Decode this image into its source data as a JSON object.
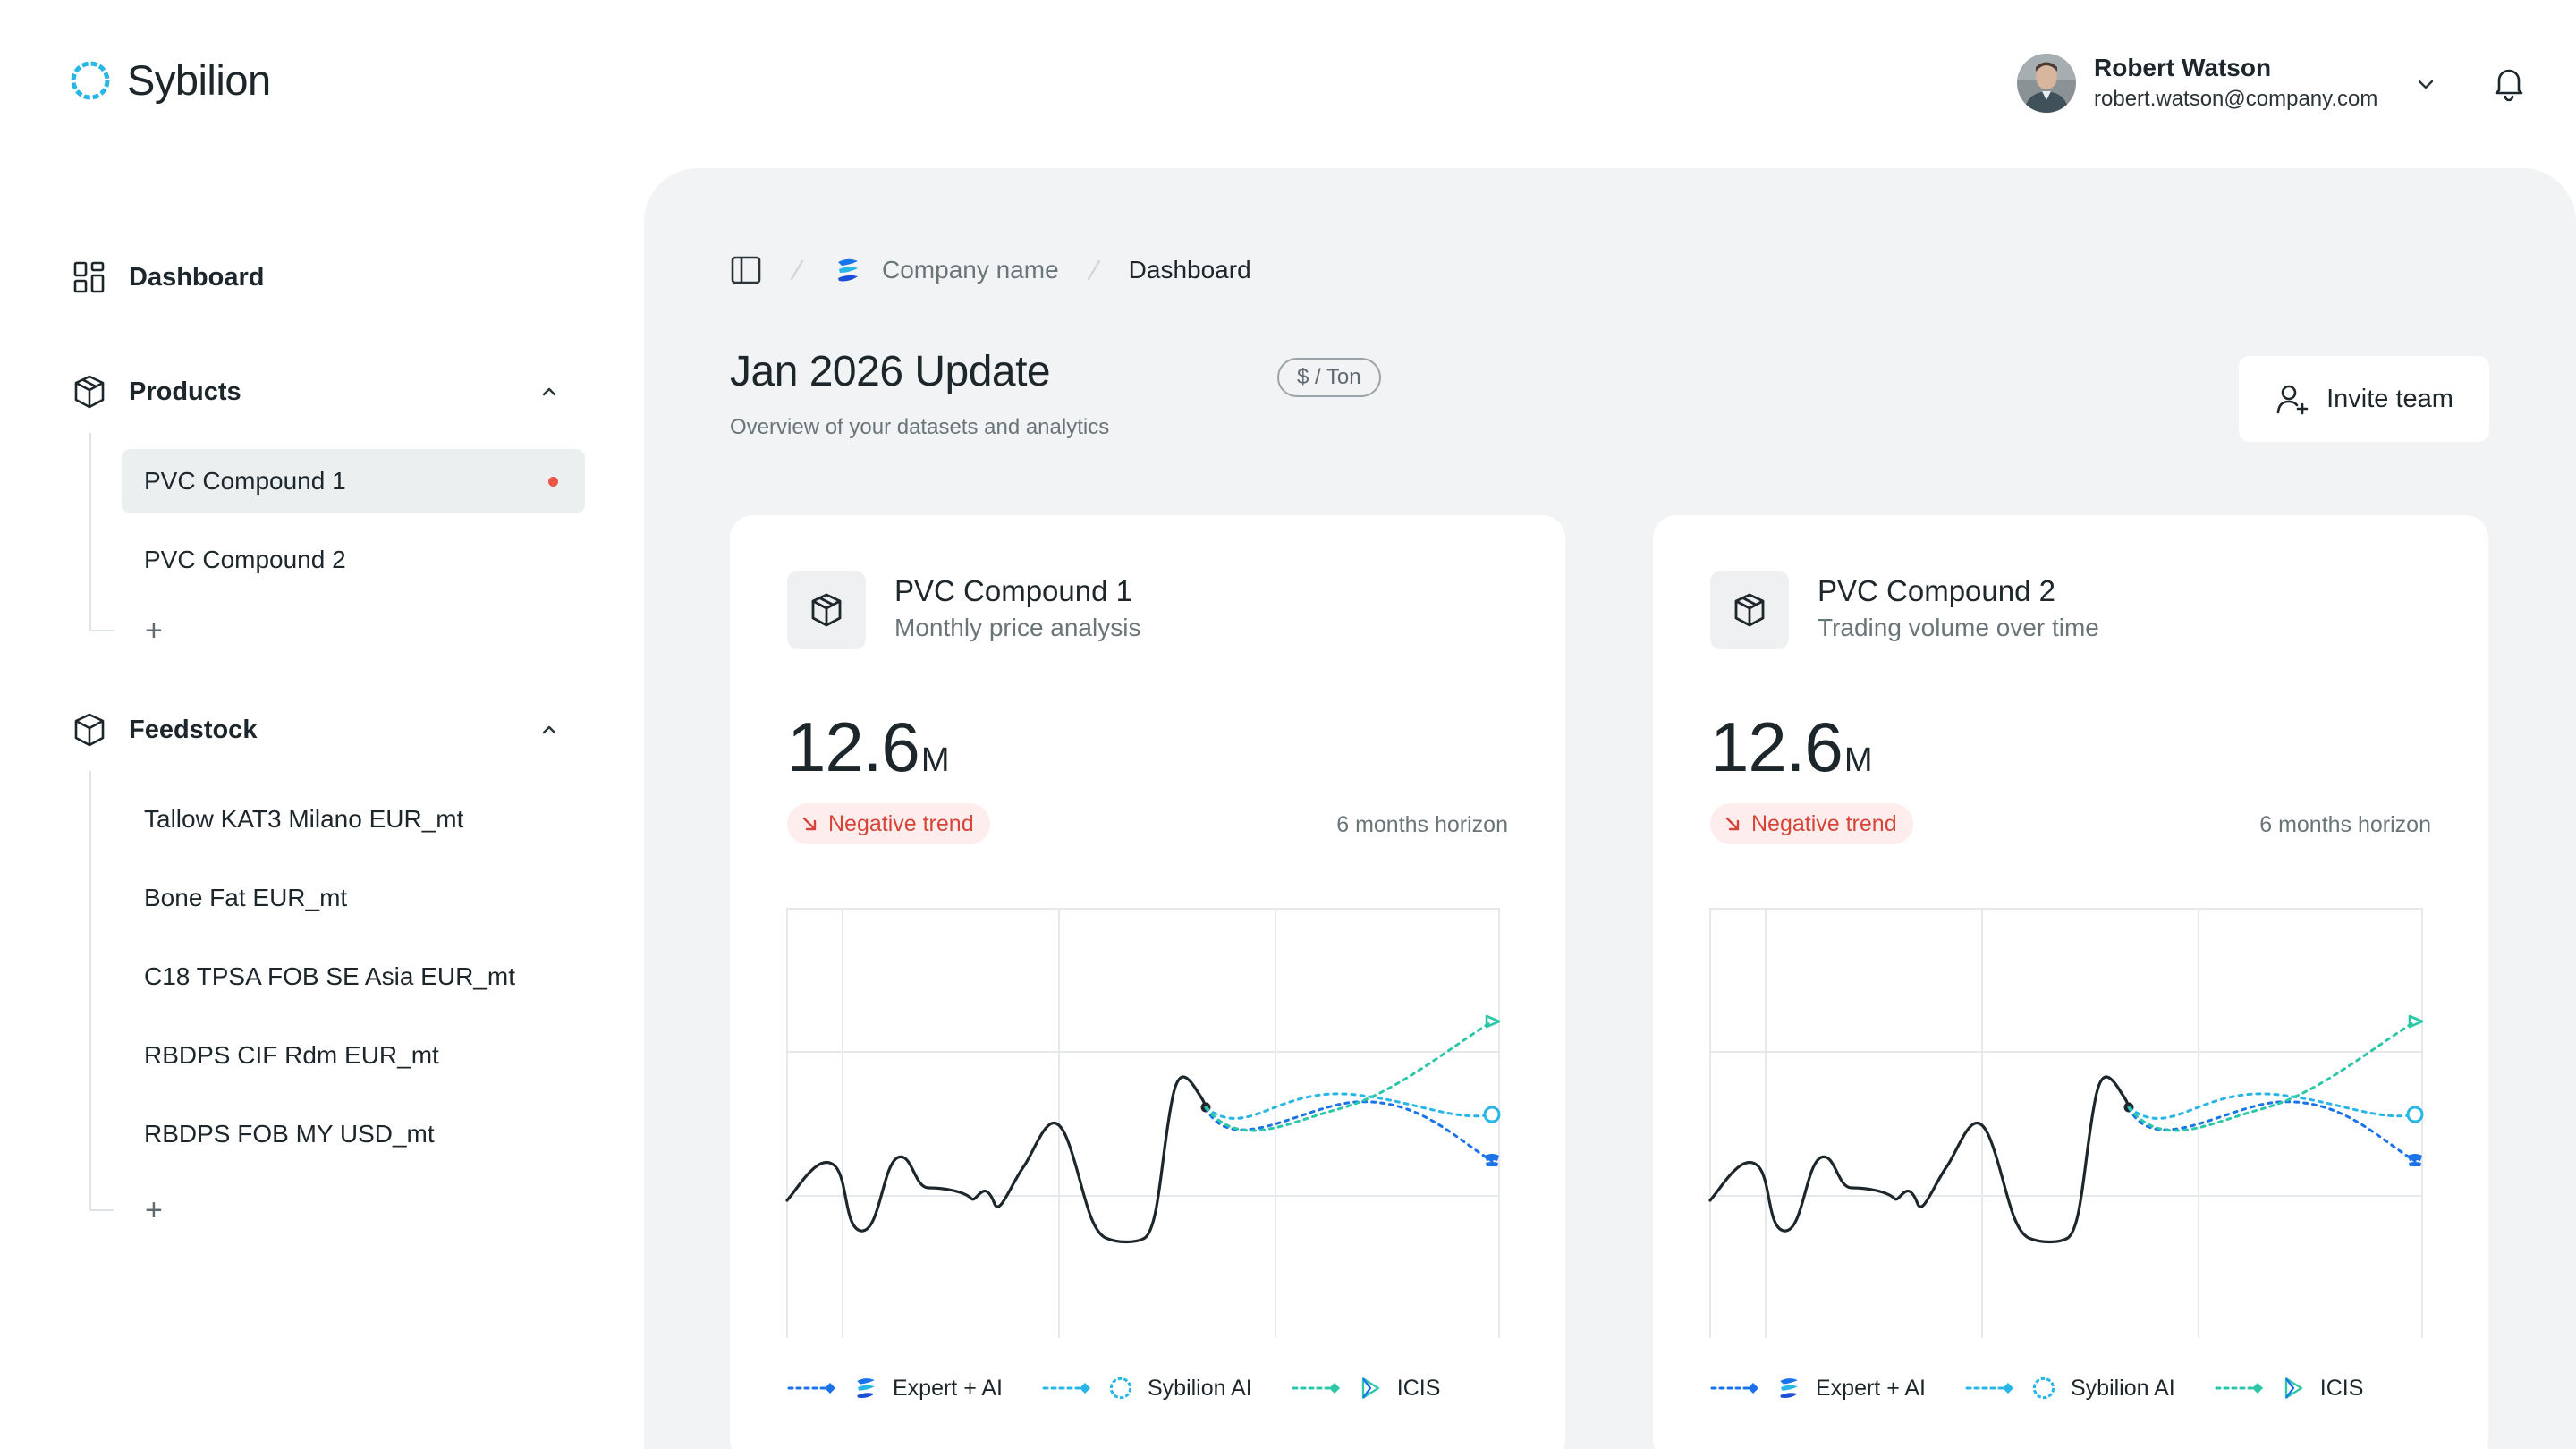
{
  "app": {
    "name": "Sybilion"
  },
  "user": {
    "name": "Robert Watson",
    "email": "robert.watson@company.com"
  },
  "sidebar": {
    "dashboard_label": "Dashboard",
    "products": {
      "label": "Products",
      "items": [
        "PVC Compound 1",
        "PVC Compound 2"
      ],
      "active_index": 0
    },
    "feedstock": {
      "label": "Feedstock",
      "items": [
        "Tallow KAT3 Milano EUR_mt",
        "Bone Fat EUR_mt",
        "C18 TPSA FOB SE Asia EUR_mt",
        "RBDPS CIF Rdm EUR_mt",
        "RBDPS FOB MY USD_mt"
      ]
    },
    "add_label": "+"
  },
  "breadcrumb": {
    "company": "Company name",
    "current": "Dashboard"
  },
  "page": {
    "title": "Jan 2026 Update",
    "unit_badge": "$ / Ton",
    "subtitle": "Overview of your datasets and analytics",
    "invite_label": "Invite team"
  },
  "cards": [
    {
      "title": "PVC Compound 1",
      "subtitle": "Monthly price analysis",
      "value": "12.6",
      "unit": "M",
      "trend": "Negative trend",
      "horizon": "6 months horizon"
    },
    {
      "title": "PVC Compound 2",
      "subtitle": "Trading volume over time",
      "value": "12.6",
      "unit": "M",
      "trend": "Negative trend",
      "horizon": "6 months horizon"
    }
  ],
  "legend": [
    {
      "label": "Expert + AI",
      "icon": "expert-ai-logo-icon",
      "color": "#1a73e8"
    },
    {
      "label": "Sybilion AI",
      "icon": "sybilion-logo-icon",
      "color": "#27b6e6"
    },
    {
      "label": "ICIS",
      "icon": "icis-logo-icon",
      "color": "#2cc7a8"
    }
  ],
  "colors": {
    "accent": "#27b6e6",
    "negative": "#d6443a",
    "panel": "#f1f3f4"
  }
}
